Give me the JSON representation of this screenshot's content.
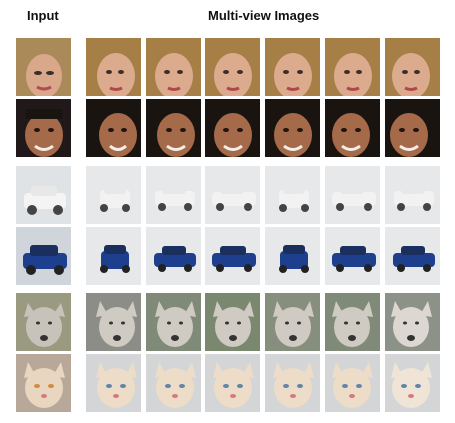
{
  "headers": {
    "input": "Input",
    "multi_view": "Multi-view Images"
  },
  "colors": {
    "human_skin": "#d8a889",
    "human_hair_blonde": "#a57f45",
    "man_skin": "#a56a4a",
    "man_hair": "#1a1410",
    "car_white": "#f0f0f0",
    "car_blue": "#1d3f8d",
    "wolf_fur": "#c8c3ba",
    "cat_fur": "#e9d6c0",
    "studio_bg": "#e6e8ea"
  }
}
